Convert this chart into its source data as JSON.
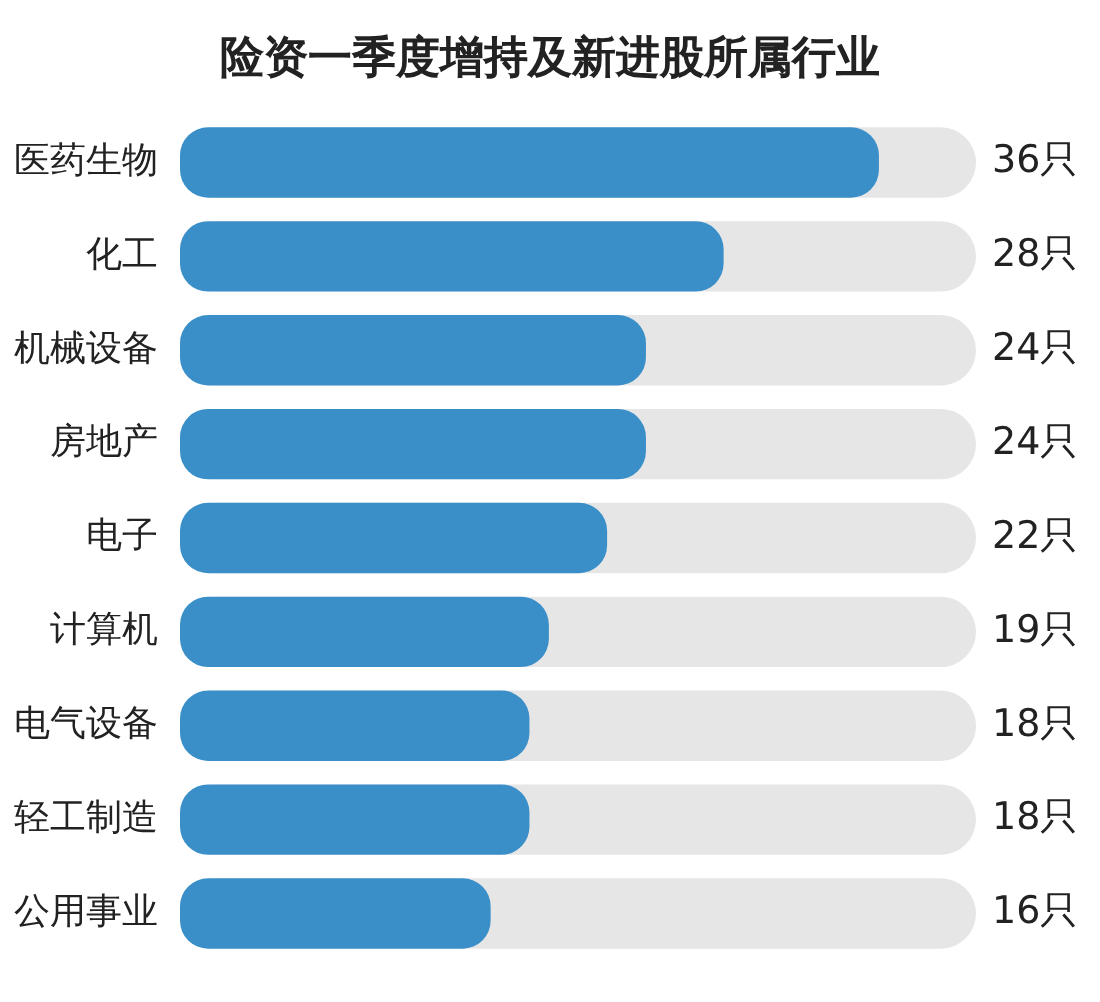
{
  "chart_data": {
    "type": "bar",
    "title": "险资一季度增持及新进股所属行业",
    "orientation": "horizontal",
    "categories": [
      "医药生物",
      "化工",
      "机械设备",
      "房地产",
      "电子",
      "计算机",
      "电气设备",
      "轻工制造",
      "公用事业"
    ],
    "values": [
      36,
      28,
      24,
      24,
      22,
      19,
      18,
      18,
      16
    ],
    "value_labels": [
      "36只",
      "28只",
      "24只",
      "24只",
      "22只",
      "19只",
      "18只",
      "18只",
      "16只"
    ],
    "color": "#3a8fc8",
    "xlim": [
      0,
      41
    ],
    "tick_labels": "y"
  }
}
